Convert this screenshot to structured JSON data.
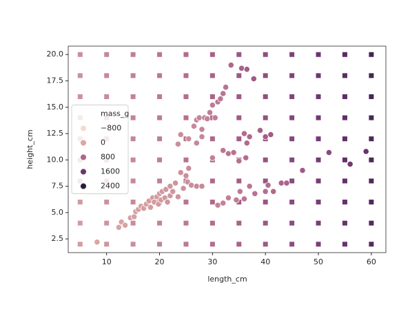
{
  "chart_data": {
    "type": "scatter",
    "xlabel": "length_cm",
    "ylabel": "height_cm",
    "xlim": [
      2.75,
      62.75
    ],
    "ylim": [
      1.2,
      20.8
    ],
    "xticks": [
      10,
      20,
      30,
      40,
      50,
      60
    ],
    "yticks": [
      2.5,
      {
        "value": 5,
        "label": "5.0"
      },
      7.5,
      {
        "value": 10,
        "label": "10.0"
      },
      12.5,
      {
        "value": 15,
        "label": "15.0"
      },
      17.5,
      {
        "value": 20,
        "label": "20.0"
      }
    ],
    "legend": {
      "title": "mass_g",
      "loc": "center left",
      "values": [
        {
          "value": -800,
          "label": "−800"
        },
        0,
        800,
        1600,
        2400
      ]
    },
    "series": [
      {
        "marker": "square",
        "x": [
          5,
          10,
          15,
          20,
          25,
          30,
          35,
          40,
          45,
          50,
          55,
          60,
          5,
          10,
          15,
          20,
          25,
          30,
          35,
          40,
          45,
          50,
          55,
          60,
          5,
          10,
          15,
          20,
          25,
          30,
          35,
          40,
          45,
          50,
          55,
          60,
          5,
          10,
          15,
          20,
          25,
          30,
          35,
          40,
          45,
          50,
          55,
          60,
          5,
          10,
          15,
          20,
          25,
          30,
          35,
          40,
          45,
          50,
          55,
          60,
          5,
          10,
          15,
          20,
          25,
          30,
          35,
          40,
          45,
          50,
          55,
          60,
          5,
          10,
          15,
          20,
          25,
          30,
          35,
          40,
          45,
          50,
          55,
          60,
          5,
          10,
          15,
          20,
          25,
          30,
          35,
          40,
          45,
          50,
          55,
          60,
          5,
          10,
          15,
          20,
          25,
          30,
          35,
          40,
          45,
          50,
          55,
          60,
          5,
          10,
          15,
          20,
          25,
          30,
          35,
          40,
          45,
          50,
          55,
          60
        ],
        "y": [
          2,
          2,
          2,
          2,
          2,
          2,
          2,
          2,
          2,
          2,
          2,
          2,
          4,
          4,
          4,
          4,
          4,
          4,
          4,
          4,
          4,
          4,
          4,
          4,
          6,
          6,
          6,
          6,
          6,
          6,
          6,
          6,
          6,
          6,
          6,
          6,
          8,
          8,
          8,
          8,
          8,
          8,
          8,
          8,
          8,
          8,
          8,
          8,
          10,
          10,
          10,
          10,
          10,
          10,
          10,
          10,
          10,
          10,
          10,
          10,
          12,
          12,
          12,
          12,
          12,
          12,
          12,
          12,
          12,
          12,
          12,
          12,
          14,
          14,
          14,
          14,
          14,
          14,
          14,
          14,
          14,
          14,
          14,
          14,
          16,
          16,
          16,
          16,
          16,
          16,
          16,
          16,
          16,
          16,
          16,
          16,
          18,
          18,
          18,
          18,
          18,
          18,
          18,
          18,
          18,
          18,
          18,
          18,
          20,
          20,
          20,
          20,
          20,
          20,
          20,
          20,
          20,
          20,
          20,
          20
        ],
        "hue": [
          120,
          220,
          320,
          420,
          570,
          720,
          870,
          1020,
          1220,
          1420,
          1670,
          1920,
          140,
          240,
          340,
          440,
          590,
          740,
          890,
          1040,
          1240,
          1440,
          1690,
          1940,
          160,
          260,
          360,
          460,
          610,
          760,
          910,
          1060,
          1260,
          1460,
          1710,
          1960,
          180,
          280,
          380,
          480,
          630,
          780,
          930,
          1080,
          1280,
          1480,
          1730,
          1980,
          200,
          300,
          400,
          500,
          650,
          800,
          950,
          1100,
          1300,
          1500,
          1750,
          2000,
          220,
          320,
          420,
          520,
          670,
          820,
          970,
          1120,
          1320,
          1520,
          1770,
          2020,
          240,
          340,
          440,
          540,
          690,
          840,
          990,
          1140,
          1340,
          1540,
          1790,
          2040,
          260,
          360,
          460,
          560,
          710,
          860,
          1010,
          1160,
          1360,
          1560,
          1810,
          2060,
          280,
          380,
          480,
          580,
          730,
          880,
          1030,
          1180,
          1380,
          1580,
          1830,
          2080,
          300,
          400,
          500,
          600,
          750,
          900,
          1050,
          1200,
          1400,
          1600,
          1850,
          2100
        ]
      },
      {
        "marker": "circle",
        "x": [
          8.2,
          12.3,
          12.8,
          13.5,
          14.5,
          15.2,
          15.5,
          16,
          16.5,
          17,
          17.5,
          18,
          18.3,
          18.7,
          19,
          19.5,
          19.8,
          20,
          20.3,
          20.5,
          21,
          21.2,
          21.5,
          22,
          22,
          22.5,
          23,
          23.5,
          24,
          24.5,
          25,
          25.3,
          25.5,
          26,
          27,
          28,
          23.5,
          24,
          25.5,
          26.5,
          27,
          27.5,
          28,
          28.5,
          29,
          29.5,
          30,
          30.5,
          31,
          31.5,
          32,
          32.5,
          33.5,
          35.5,
          36.5,
          37.8,
          27,
          28,
          30,
          31,
          32,
          33,
          34.5,
          35.2,
          36,
          37,
          38,
          40,
          40.5,
          41.5,
          43,
          44,
          47,
          52,
          56,
          59,
          32,
          33,
          34,
          35,
          36,
          36.5,
          37,
          36.3,
          39,
          40,
          41
        ],
        "y": [
          2.2,
          3.6,
          4.1,
          3.8,
          4.5,
          4.6,
          5.1,
          5.3,
          5.6,
          5.4,
          5.8,
          6.1,
          5.5,
          6.4,
          6.0,
          6.5,
          5.8,
          6.8,
          6.2,
          7.0,
          6.4,
          7.2,
          6.0,
          7.5,
          6.6,
          7.0,
          7.8,
          6.5,
          8.8,
          7.3,
          8.5,
          7.9,
          9.2,
          7.6,
          7.5,
          7.5,
          11.5,
          12.4,
          12.0,
          13.2,
          13.8,
          14.0,
          12.9,
          14.0,
          13.9,
          14.5,
          15.2,
          14.0,
          15.5,
          15.8,
          16.3,
          16.9,
          19.0,
          18.7,
          18.6,
          17.7,
          11.6,
          12.2,
          10.2,
          5.7,
          5.9,
          6.4,
          6.2,
          7.0,
          6.3,
          7.5,
          6.8,
          7.0,
          7.6,
          7.0,
          7.8,
          7.8,
          9.0,
          10.7,
          9.6,
          10.8,
          10.9,
          10.6,
          10.7,
          9.9,
          12.5,
          11.6,
          12.2,
          10.2,
          12.8,
          12.2,
          12.4
        ],
        "hue": [
          10,
          40,
          50,
          55,
          70,
          75,
          85,
          95,
          100,
          110,
          120,
          130,
          130,
          145,
          150,
          160,
          160,
          170,
          175,
          180,
          190,
          200,
          200,
          210,
          210,
          220,
          240,
          240,
          260,
          270,
          290,
          300,
          320,
          310,
          340,
          370,
          290,
          310,
          330,
          380,
          400,
          420,
          420,
          450,
          470,
          500,
          520,
          520,
          560,
          580,
          620,
          650,
          800,
          900,
          950,
          1000,
          380,
          400,
          480,
          420,
          440,
          480,
          520,
          560,
          600,
          620,
          650,
          700,
          720,
          760,
          820,
          850,
          1000,
          1250,
          1550,
          1650,
          600,
          620,
          650,
          680,
          750,
          760,
          780,
          740,
          900,
          950,
          980
        ]
      }
    ]
  }
}
